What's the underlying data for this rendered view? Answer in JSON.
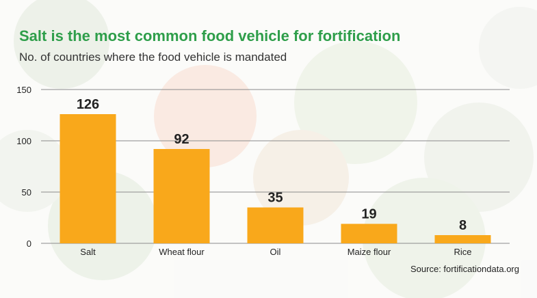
{
  "title": "Salt is the most common food vehicle for fortification",
  "subtitle": "No. of countries where the food vehicle is mandated",
  "source": "Source: fortificationdata.org",
  "colors": {
    "bar": "#f9a81b",
    "title": "#2e9e4a",
    "grid": "#8a8a8a"
  },
  "chart_data": {
    "type": "bar",
    "categories": [
      "Salt",
      "Wheat flour",
      "Oil",
      "Maize flour",
      "Rice"
    ],
    "values": [
      126,
      92,
      35,
      19,
      8
    ],
    "data_labels": [
      "126",
      "92",
      "35",
      "19",
      "8"
    ],
    "title": "Salt is the most common food vehicle for fortification",
    "subtitle": "No. of countries where the food vehicle is mandated",
    "xlabel": "",
    "ylabel": "",
    "ylim": [
      0,
      150
    ],
    "yticks": [
      0,
      50,
      100,
      150
    ],
    "grid": true,
    "legend": "none"
  }
}
